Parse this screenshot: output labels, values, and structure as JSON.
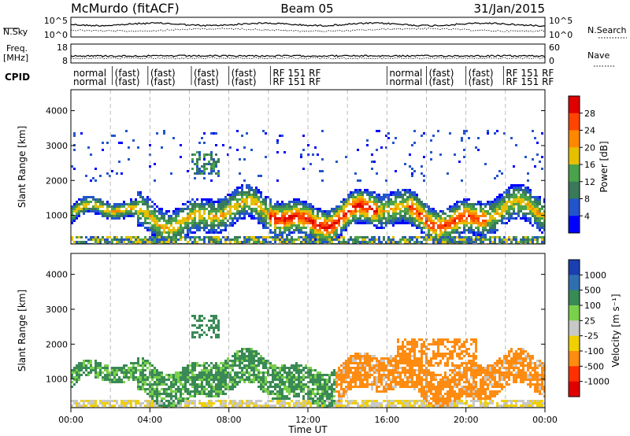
{
  "header": {
    "station": "McMurdo (fitACF)",
    "beam": "Beam 05",
    "date": "31/Jan/2015"
  },
  "top_panels": {
    "nsky_label": "N.Sky",
    "nsearch_label": "N.Search",
    "noise_ticks": [
      "10^5",
      "10^0"
    ],
    "freq_label": "Freq.",
    "freq_unit": "[MHz]",
    "freq_ticks": [
      "18",
      "8"
    ],
    "nave_label": "Nave",
    "nave_ticks": [
      "60",
      "0"
    ],
    "cpid_label": "CPID"
  },
  "cpid_segments": [
    {
      "start": 0.0,
      "line1": "normal",
      "line2": "normal"
    },
    {
      "start": 2.1,
      "line1": "(fast)",
      "line2": "(fast)"
    },
    {
      "start": 3.9,
      "line1": "(fast)",
      "line2": "(fast)"
    },
    {
      "start": 6.1,
      "line1": "(fast)",
      "line2": "(fast)"
    },
    {
      "start": 8.0,
      "line1": "(fast)",
      "line2": "(fast)"
    },
    {
      "start": 10.1,
      "line1": "RF 151 RF",
      "line2": "RF 151 RF"
    },
    {
      "start": 16.0,
      "line1": "normal",
      "line2": "normal"
    },
    {
      "start": 18.0,
      "line1": "(fast)",
      "line2": "(fast)"
    },
    {
      "start": 20.0,
      "line1": "(fast)",
      "line2": "(fast)"
    },
    {
      "start": 21.9,
      "line1": "RF 151 RF",
      "line2": "RF 151 RF"
    }
  ],
  "chart_data": [
    {
      "type": "heatmap",
      "quantity": "Power",
      "ylabel": "Slant Range [km]",
      "xlim": [
        0,
        24
      ],
      "ylim": [
        180,
        4600
      ],
      "yticks": [
        1000,
        2000,
        3000,
        4000
      ],
      "colorbar_label": "Power [dB]",
      "colorbar_ticks": [
        4,
        8,
        12,
        16,
        20,
        24,
        28
      ],
      "colorbar_range": [
        0,
        30
      ],
      "colors": [
        "#0000ff",
        "#2255cc",
        "#3a7a5a",
        "#4aa24a",
        "#e6c000",
        "#ff8800",
        "#ff4400",
        "#e00000"
      ]
    },
    {
      "type": "heatmap",
      "quantity": "Velocity",
      "ylabel": "Slant Range [km]",
      "xlabel": "Time UT",
      "xlim": [
        0,
        24
      ],
      "ylim": [
        180,
        4600
      ],
      "yticks": [
        1000,
        2000,
        3000,
        4000
      ],
      "xticks": [
        "00:00",
        "04:00",
        "08:00",
        "12:00",
        "16:00",
        "20:00",
        "00:00"
      ],
      "colorbar_label": "Velocity [m s⁻¹]",
      "colorbar_ticks": [
        "1000",
        "500",
        "100",
        "25",
        "-25",
        "-100",
        "-500",
        "-1000"
      ],
      "colors": [
        "#1a3fb0",
        "#2f6fb0",
        "#3a8a55",
        "#7ad04a",
        "#c8c8c8",
        "#f0d000",
        "#ff8c10",
        "#ff3000",
        "#e00000"
      ]
    }
  ]
}
